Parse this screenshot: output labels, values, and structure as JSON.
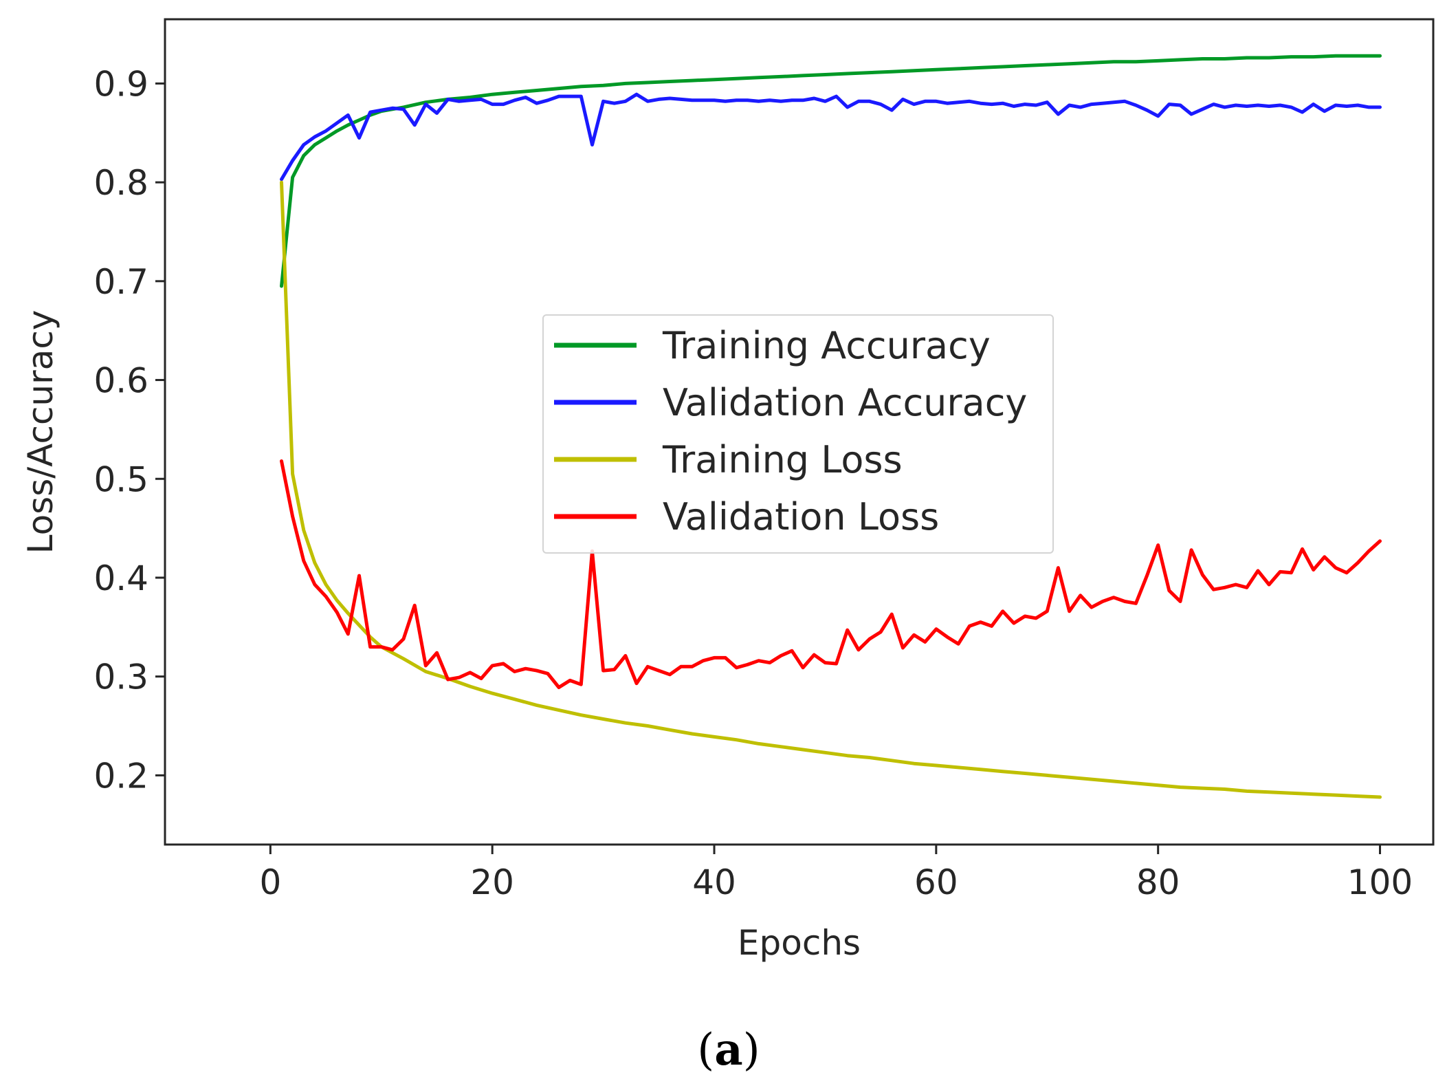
{
  "chart_data": {
    "type": "line",
    "title": "",
    "xlabel": "Epochs",
    "ylabel": "Loss/Accuracy",
    "xlim": [
      -9.5,
      104.8
    ],
    "ylim": [
      0.13,
      0.965
    ],
    "xticks": [
      0,
      20,
      40,
      60,
      80,
      100
    ],
    "xtick_labels": [
      "0",
      "20",
      "40",
      "60",
      "80",
      "100"
    ],
    "yticks": [
      0.2,
      0.3,
      0.4,
      0.5,
      0.6,
      0.7,
      0.8,
      0.9
    ],
    "ytick_labels": [
      "0.2",
      "0.3",
      "0.4",
      "0.5",
      "0.6",
      "0.7",
      "0.8",
      "0.9"
    ],
    "grid": false,
    "legend_position": "center-right",
    "caption": {
      "open": "(",
      "letter": "a",
      "close": ")"
    },
    "series": [
      {
        "name": "Training Accuracy",
        "color": "#009926",
        "x": [
          1,
          2,
          3,
          4,
          5,
          6,
          7,
          8,
          9,
          10,
          12,
          14,
          16,
          18,
          20,
          22,
          24,
          26,
          28,
          30,
          32,
          34,
          36,
          38,
          40,
          42,
          44,
          46,
          48,
          50,
          52,
          54,
          56,
          58,
          60,
          62,
          64,
          66,
          68,
          70,
          72,
          74,
          76,
          78,
          80,
          82,
          84,
          86,
          88,
          90,
          92,
          94,
          96,
          98,
          100
        ],
        "y": [
          0.695,
          0.805,
          0.827,
          0.838,
          0.845,
          0.852,
          0.858,
          0.863,
          0.868,
          0.872,
          0.876,
          0.881,
          0.884,
          0.886,
          0.889,
          0.891,
          0.893,
          0.895,
          0.897,
          0.898,
          0.9,
          0.901,
          0.902,
          0.903,
          0.904,
          0.905,
          0.906,
          0.907,
          0.908,
          0.909,
          0.91,
          0.911,
          0.912,
          0.913,
          0.914,
          0.915,
          0.916,
          0.917,
          0.918,
          0.919,
          0.92,
          0.921,
          0.922,
          0.922,
          0.923,
          0.924,
          0.925,
          0.925,
          0.926,
          0.926,
          0.927,
          0.927,
          0.928,
          0.928,
          0.928
        ]
      },
      {
        "name": "Validation Accuracy",
        "color": "#1a1aff",
        "x": [
          1,
          2,
          3,
          4,
          5,
          6,
          7,
          8,
          9,
          10,
          11,
          12,
          13,
          14,
          15,
          16,
          17,
          18,
          19,
          20,
          21,
          22,
          23,
          24,
          25,
          26,
          27,
          28,
          29,
          30,
          31,
          32,
          33,
          34,
          35,
          36,
          37,
          38,
          39,
          40,
          41,
          42,
          43,
          44,
          45,
          46,
          47,
          48,
          49,
          50,
          51,
          52,
          53,
          54,
          55,
          56,
          57,
          58,
          59,
          60,
          61,
          62,
          63,
          64,
          65,
          66,
          67,
          68,
          69,
          70,
          71,
          72,
          73,
          74,
          75,
          76,
          77,
          78,
          79,
          80,
          81,
          82,
          83,
          84,
          85,
          86,
          87,
          88,
          89,
          90,
          91,
          92,
          93,
          94,
          95,
          96,
          97,
          98,
          99,
          100
        ],
        "y": [
          0.803,
          0.822,
          0.838,
          0.846,
          0.852,
          0.86,
          0.868,
          0.845,
          0.871,
          0.873,
          0.875,
          0.874,
          0.858,
          0.879,
          0.87,
          0.884,
          0.882,
          0.883,
          0.884,
          0.879,
          0.879,
          0.883,
          0.886,
          0.88,
          0.883,
          0.887,
          0.887,
          0.887,
          0.838,
          0.882,
          0.88,
          0.882,
          0.889,
          0.882,
          0.884,
          0.885,
          0.884,
          0.883,
          0.883,
          0.883,
          0.882,
          0.883,
          0.883,
          0.882,
          0.883,
          0.882,
          0.883,
          0.883,
          0.885,
          0.882,
          0.887,
          0.876,
          0.882,
          0.882,
          0.879,
          0.873,
          0.884,
          0.879,
          0.882,
          0.882,
          0.88,
          0.881,
          0.882,
          0.88,
          0.879,
          0.88,
          0.877,
          0.879,
          0.878,
          0.881,
          0.869,
          0.878,
          0.876,
          0.879,
          0.88,
          0.881,
          0.882,
          0.878,
          0.873,
          0.867,
          0.879,
          0.878,
          0.869,
          0.874,
          0.879,
          0.876,
          0.878,
          0.877,
          0.878,
          0.877,
          0.878,
          0.876,
          0.871,
          0.879,
          0.872,
          0.878,
          0.877,
          0.878,
          0.876,
          0.876
        ]
      },
      {
        "name": "Training Loss",
        "color": "#bfbf00",
        "x": [
          1,
          2,
          3,
          4,
          5,
          6,
          7,
          8,
          9,
          10,
          12,
          14,
          16,
          18,
          20,
          22,
          24,
          26,
          28,
          30,
          32,
          34,
          36,
          38,
          40,
          42,
          44,
          46,
          48,
          50,
          52,
          54,
          56,
          58,
          60,
          62,
          64,
          66,
          68,
          70,
          72,
          74,
          76,
          78,
          80,
          82,
          84,
          86,
          88,
          90,
          92,
          94,
          96,
          98,
          100
        ],
        "y": [
          0.8,
          0.505,
          0.448,
          0.415,
          0.393,
          0.377,
          0.364,
          0.352,
          0.34,
          0.33,
          0.318,
          0.305,
          0.298,
          0.29,
          0.283,
          0.277,
          0.271,
          0.266,
          0.261,
          0.257,
          0.253,
          0.25,
          0.246,
          0.242,
          0.239,
          0.236,
          0.232,
          0.229,
          0.226,
          0.223,
          0.22,
          0.218,
          0.215,
          0.212,
          0.21,
          0.208,
          0.206,
          0.204,
          0.202,
          0.2,
          0.198,
          0.196,
          0.194,
          0.192,
          0.19,
          0.188,
          0.187,
          0.186,
          0.184,
          0.183,
          0.182,
          0.181,
          0.18,
          0.179,
          0.178
        ]
      },
      {
        "name": "Validation Loss",
        "color": "#ff0000",
        "x": [
          1,
          2,
          3,
          4,
          5,
          6,
          7,
          8,
          9,
          10,
          11,
          12,
          13,
          14,
          15,
          16,
          17,
          18,
          19,
          20,
          21,
          22,
          23,
          24,
          25,
          26,
          27,
          28,
          29,
          30,
          31,
          32,
          33,
          34,
          35,
          36,
          37,
          38,
          39,
          40,
          41,
          42,
          43,
          44,
          45,
          46,
          47,
          48,
          49,
          50,
          51,
          52,
          53,
          54,
          55,
          56,
          57,
          58,
          59,
          60,
          61,
          62,
          63,
          64,
          65,
          66,
          67,
          68,
          69,
          70,
          71,
          72,
          73,
          74,
          75,
          76,
          77,
          78,
          79,
          80,
          81,
          82,
          83,
          84,
          85,
          86,
          87,
          88,
          89,
          90,
          91,
          92,
          93,
          94,
          95,
          96,
          97,
          98,
          99,
          100
        ],
        "y": [
          0.518,
          0.462,
          0.417,
          0.393,
          0.381,
          0.365,
          0.343,
          0.402,
          0.33,
          0.33,
          0.327,
          0.338,
          0.372,
          0.311,
          0.324,
          0.297,
          0.299,
          0.304,
          0.298,
          0.311,
          0.313,
          0.305,
          0.308,
          0.306,
          0.303,
          0.289,
          0.296,
          0.292,
          0.427,
          0.306,
          0.307,
          0.321,
          0.293,
          0.31,
          0.306,
          0.302,
          0.31,
          0.31,
          0.316,
          0.319,
          0.319,
          0.309,
          0.312,
          0.316,
          0.314,
          0.321,
          0.326,
          0.309,
          0.322,
          0.314,
          0.313,
          0.347,
          0.327,
          0.338,
          0.345,
          0.363,
          0.329,
          0.342,
          0.335,
          0.348,
          0.34,
          0.333,
          0.351,
          0.355,
          0.351,
          0.366,
          0.354,
          0.361,
          0.359,
          0.366,
          0.41,
          0.366,
          0.382,
          0.37,
          0.376,
          0.38,
          0.376,
          0.374,
          0.402,
          0.433,
          0.387,
          0.376,
          0.428,
          0.403,
          0.388,
          0.39,
          0.393,
          0.39,
          0.407,
          0.393,
          0.406,
          0.405,
          0.429,
          0.408,
          0.421,
          0.41,
          0.405,
          0.415,
          0.427,
          0.437
        ]
      }
    ]
  }
}
